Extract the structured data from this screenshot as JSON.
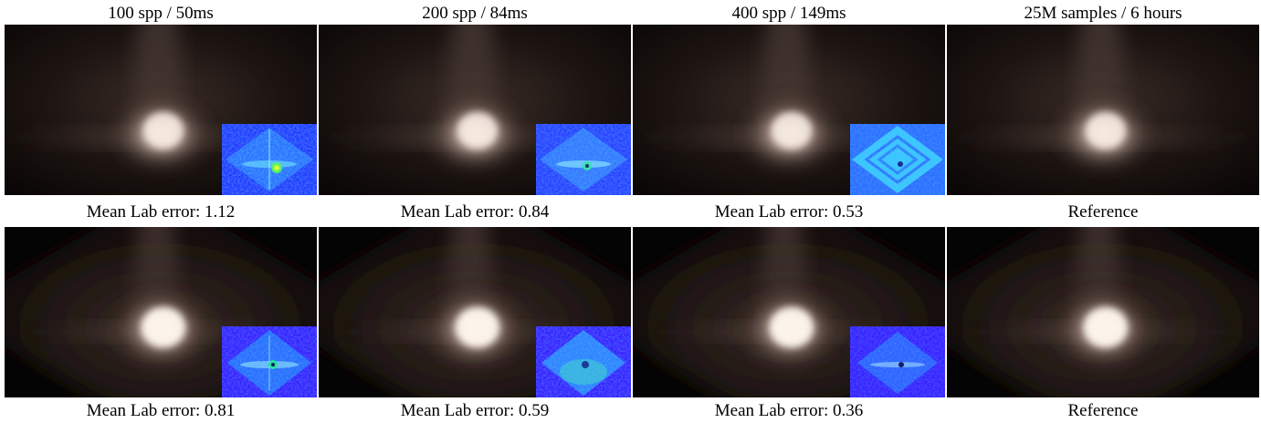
{
  "columns": [
    {
      "header": "100 spp / 50ms"
    },
    {
      "header": "200 spp / 84ms"
    },
    {
      "header": "400 spp / 149ms"
    },
    {
      "header": "25M samples / 6 hours"
    }
  ],
  "rows": [
    {
      "captions": [
        "Mean Lab error: 1.12",
        "Mean Lab error: 0.84",
        "Mean Lab error: 0.53",
        "Reference"
      ]
    },
    {
      "captions": [
        "Mean Lab error: 0.81",
        "Mean Lab error: 0.59",
        "Mean Lab error: 0.36",
        "Reference"
      ]
    }
  ],
  "colors": {
    "scene_background": "#0b0807",
    "glow_core": "#fff4ea",
    "heatmap_low": "#1e2cff",
    "heatmap_mid": "#2aa8ff",
    "heatmap_high": "#35f0a0"
  }
}
